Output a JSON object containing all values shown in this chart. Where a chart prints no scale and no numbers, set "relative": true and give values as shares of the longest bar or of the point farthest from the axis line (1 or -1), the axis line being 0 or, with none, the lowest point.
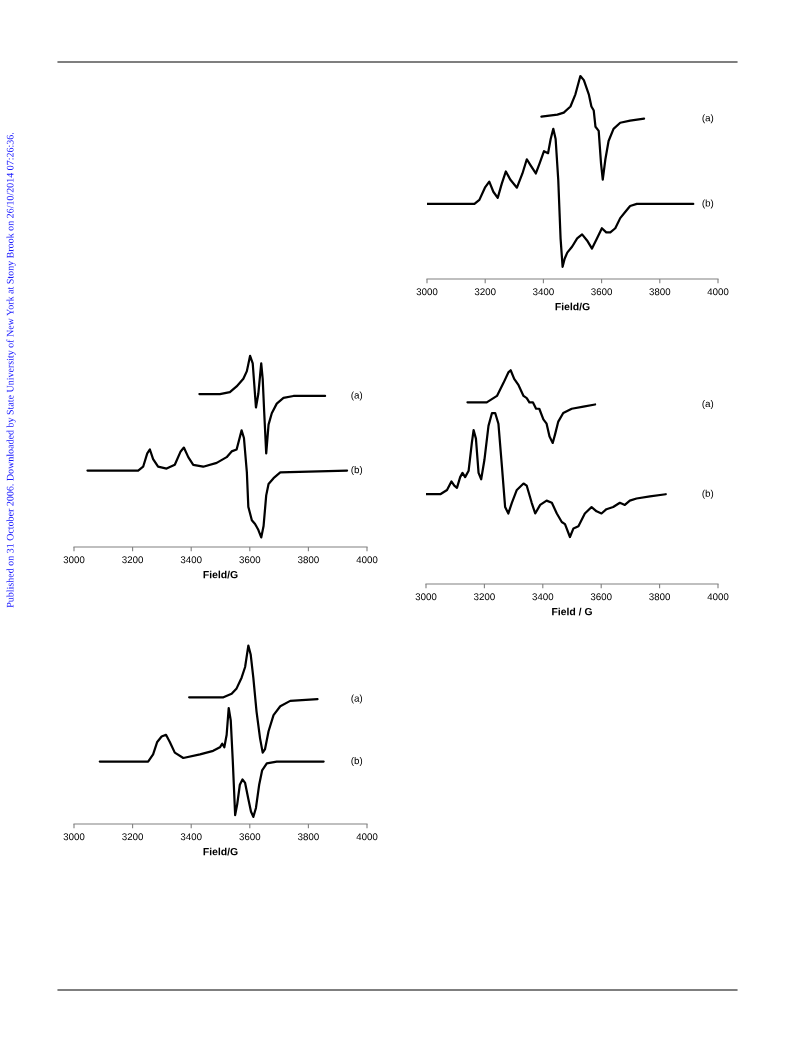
{
  "chart_data": [
    {
      "type": "line",
      "relative": true,
      "xlabel": "Field/G",
      "xlim": [
        3000,
        4000
      ],
      "xticks": [
        3000,
        3200,
        3400,
        3600,
        3800,
        4000
      ],
      "tick_labels": "x",
      "legend": false,
      "grid": false,
      "annotations": [
        "Published on 31 October 2006. Downloaded by State University of New York at Stony Brook on 26/10/2014 07:26:36."
      ],
      "series": [
        {
          "name": "(a)",
          "color": "#000000",
          "x": [
            3393,
            3448,
            3470,
            3493,
            3510,
            3527,
            3539,
            3556,
            3565,
            3573,
            3579,
            3590,
            3598,
            3604,
            3613,
            3624,
            3641,
            3664,
            3698,
            3746
          ],
          "values": [
            0.8,
            0.81,
            0.82,
            0.85,
            0.91,
            1.0,
            0.98,
            0.91,
            0.85,
            0.83,
            0.75,
            0.73,
            0.57,
            0.49,
            0.59,
            0.68,
            0.74,
            0.77,
            0.78,
            0.79
          ]
        },
        {
          "name": "(b)",
          "color": "#000000",
          "x": [
            3000,
            3163,
            3180,
            3199,
            3214,
            3228,
            3243,
            3257,
            3271,
            3286,
            3309,
            3328,
            3343,
            3356,
            3374,
            3387,
            3402,
            3416,
            3425,
            3434,
            3442,
            3451,
            3459,
            3466,
            3473,
            3482,
            3499,
            3516,
            3533,
            3550,
            3567,
            3584,
            3601,
            3616,
            3630,
            3647,
            3664,
            3681,
            3698,
            3721,
            3789,
            3915
          ],
          "values": [
            0.37,
            0.37,
            0.39,
            0.45,
            0.48,
            0.43,
            0.4,
            0.47,
            0.53,
            0.49,
            0.45,
            0.52,
            0.59,
            0.56,
            0.52,
            0.57,
            0.63,
            0.62,
            0.69,
            0.74,
            0.69,
            0.49,
            0.2,
            0.06,
            0.1,
            0.13,
            0.16,
            0.2,
            0.22,
            0.19,
            0.15,
            0.2,
            0.25,
            0.23,
            0.23,
            0.25,
            0.3,
            0.33,
            0.36,
            0.37,
            0.37,
            0.37
          ]
        }
      ]
    },
    {
      "type": "line",
      "relative": true,
      "xlabel": "Field/G",
      "xlim": [
        3000,
        4000
      ],
      "xticks": [
        3000,
        3200,
        3400,
        3600,
        3800,
        4000
      ],
      "tick_labels": "x",
      "legend": false,
      "grid": false,
      "series": [
        {
          "name": "(a)",
          "color": "#000000",
          "x": [
            3428,
            3498,
            3532,
            3555,
            3578,
            3590,
            3601,
            3610,
            3621,
            3629,
            3639,
            3644,
            3649,
            3656,
            3664,
            3675,
            3692,
            3715,
            3749,
            3857
          ],
          "values": [
            0.8,
            0.8,
            0.81,
            0.84,
            0.88,
            0.92,
            1.0,
            0.96,
            0.73,
            0.8,
            0.96,
            0.88,
            0.71,
            0.49,
            0.64,
            0.7,
            0.75,
            0.78,
            0.79,
            0.79
          ]
        },
        {
          "name": "(b)",
          "color": "#000000",
          "x": [
            3046,
            3219,
            3236,
            3250,
            3259,
            3270,
            3287,
            3316,
            3344,
            3364,
            3375,
            3390,
            3407,
            3441,
            3487,
            3521,
            3538,
            3555,
            3572,
            3580,
            3590,
            3595,
            3607,
            3618,
            3629,
            3639,
            3647,
            3656,
            3664,
            3681,
            3704,
            3932
          ],
          "values": [
            0.4,
            0.4,
            0.42,
            0.49,
            0.51,
            0.46,
            0.42,
            0.41,
            0.43,
            0.5,
            0.52,
            0.47,
            0.43,
            0.42,
            0.44,
            0.47,
            0.5,
            0.51,
            0.61,
            0.57,
            0.39,
            0.21,
            0.14,
            0.12,
            0.09,
            0.05,
            0.11,
            0.27,
            0.33,
            0.36,
            0.39,
            0.4
          ]
        }
      ]
    },
    {
      "type": "line",
      "relative": true,
      "xlabel": "Field / G",
      "xlim": [
        3000,
        4000
      ],
      "xticks": [
        3000,
        3200,
        3400,
        3600,
        3800,
        4000
      ],
      "tick_labels": "x",
      "legend": false,
      "grid": false,
      "series": [
        {
          "name": "(a)",
          "color": "#000000",
          "x": [
            3142,
            3208,
            3243,
            3265,
            3282,
            3290,
            3302,
            3317,
            3334,
            3345,
            3354,
            3366,
            3377,
            3388,
            3402,
            3413,
            3423,
            3434,
            3442,
            3453,
            3470,
            3499,
            3539,
            3579
          ],
          "values": [
            0.85,
            0.85,
            0.88,
            0.94,
            0.99,
            1.0,
            0.96,
            0.93,
            0.88,
            0.87,
            0.85,
            0.85,
            0.82,
            0.82,
            0.77,
            0.75,
            0.69,
            0.66,
            0.7,
            0.76,
            0.8,
            0.82,
            0.83,
            0.84
          ]
        },
        {
          "name": "(b)",
          "color": "#000000",
          "x": [
            3000,
            3049,
            3072,
            3087,
            3097,
            3106,
            3117,
            3125,
            3134,
            3146,
            3157,
            3163,
            3171,
            3180,
            3189,
            3200,
            3214,
            3226,
            3237,
            3248,
            3260,
            3271,
            3282,
            3294,
            3311,
            3334,
            3345,
            3362,
            3374,
            3391,
            3413,
            3431,
            3448,
            3465,
            3476,
            3493,
            3505,
            3522,
            3544,
            3567,
            3584,
            3601,
            3618,
            3641,
            3664,
            3681,
            3698,
            3721,
            3767,
            3821
          ],
          "values": [
            0.42,
            0.42,
            0.44,
            0.48,
            0.46,
            0.45,
            0.5,
            0.52,
            0.5,
            0.53,
            0.66,
            0.72,
            0.68,
            0.52,
            0.49,
            0.58,
            0.74,
            0.8,
            0.8,
            0.75,
            0.55,
            0.36,
            0.33,
            0.38,
            0.44,
            0.47,
            0.46,
            0.38,
            0.33,
            0.37,
            0.39,
            0.38,
            0.33,
            0.29,
            0.28,
            0.22,
            0.26,
            0.27,
            0.33,
            0.36,
            0.34,
            0.33,
            0.35,
            0.36,
            0.38,
            0.37,
            0.39,
            0.4,
            0.41,
            0.42
          ]
        }
      ]
    },
    {
      "type": "line",
      "relative": true,
      "xlabel": "Field/G",
      "xlim": [
        3000,
        4000
      ],
      "xticks": [
        3000,
        3200,
        3400,
        3600,
        3800,
        4000
      ],
      "tick_labels": "x",
      "legend": false,
      "grid": false,
      "series": [
        {
          "name": "(a)",
          "color": "#000000",
          "x": [
            3393,
            3510,
            3538,
            3555,
            3572,
            3584,
            3595,
            3603,
            3612,
            3623,
            3635,
            3644,
            3652,
            3664,
            3681,
            3704,
            3738,
            3831
          ],
          "values": [
            0.71,
            0.71,
            0.73,
            0.76,
            0.82,
            0.88,
            1.0,
            0.95,
            0.82,
            0.63,
            0.48,
            0.4,
            0.42,
            0.52,
            0.61,
            0.66,
            0.69,
            0.7
          ]
        },
        {
          "name": "(b)",
          "color": "#000000",
          "x": [
            3088,
            3253,
            3270,
            3284,
            3299,
            3314,
            3327,
            3344,
            3373,
            3430,
            3475,
            3498,
            3506,
            3513,
            3521,
            3528,
            3535,
            3542,
            3550,
            3557,
            3566,
            3575,
            3584,
            3595,
            3604,
            3612,
            3621,
            3632,
            3642,
            3658,
            3692,
            3852
          ],
          "values": [
            0.35,
            0.35,
            0.39,
            0.46,
            0.49,
            0.5,
            0.46,
            0.4,
            0.37,
            0.39,
            0.41,
            0.43,
            0.45,
            0.43,
            0.5,
            0.65,
            0.58,
            0.35,
            0.05,
            0.11,
            0.22,
            0.25,
            0.23,
            0.14,
            0.07,
            0.04,
            0.09,
            0.22,
            0.3,
            0.34,
            0.35,
            0.35
          ]
        }
      ]
    }
  ]
}
